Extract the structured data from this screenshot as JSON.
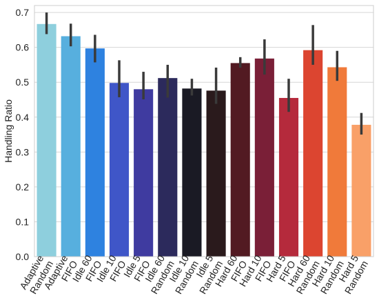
{
  "chart_data": {
    "type": "bar",
    "ylabel": "Handling Ratio",
    "xlabel": "",
    "ylim": [
      0,
      0.72
    ],
    "yticks": [
      "0.0",
      "0.1",
      "0.2",
      "0.3",
      "0.4",
      "0.5",
      "0.6",
      "0.7"
    ],
    "grid": "horizontal",
    "categories": [
      [
        "Adaptive",
        "Random"
      ],
      [
        "Adaptive",
        "FIFO"
      ],
      [
        "Idle 60",
        "FIFO"
      ],
      [
        "Idle 10",
        "FIFO"
      ],
      [
        "Idle 5",
        "FIFO"
      ],
      [
        "Idle 60",
        "Random"
      ],
      [
        "Idle 10",
        "Random"
      ],
      [
        "Idle 5",
        "Random"
      ],
      [
        "Hard 60",
        "FIFO"
      ],
      [
        "Hard 10",
        "FIFO"
      ],
      [
        "Hard 5",
        "FIFO"
      ],
      [
        "Hard 60",
        "Random"
      ],
      [
        "Hard 10",
        "Random"
      ],
      [
        "Hard 5",
        "Random"
      ]
    ],
    "values": [
      0.667,
      0.632,
      0.597,
      0.498,
      0.48,
      0.512,
      0.482,
      0.476,
      0.555,
      0.568,
      0.455,
      0.592,
      0.543,
      0.378
    ],
    "error_low": [
      0.638,
      0.603,
      0.557,
      0.457,
      0.451,
      0.456,
      0.462,
      0.438,
      0.542,
      0.522,
      0.415,
      0.55,
      0.504,
      0.35
    ],
    "error_high": [
      0.7,
      0.668,
      0.636,
      0.563,
      0.53,
      0.55,
      0.51,
      0.542,
      0.572,
      0.623,
      0.51,
      0.664,
      0.59,
      0.412
    ],
    "colors": [
      "#8ecfdd",
      "#57afde",
      "#2e82e0",
      "#3f56c8",
      "#3f3ba0",
      "#2c2a5c",
      "#1a1a24",
      "#2a1a1c",
      "#521a22",
      "#7a1f37",
      "#b52a3c",
      "#dc4530",
      "#f07a3a",
      "#f9a068"
    ],
    "error_color": "#3a3a3a"
  }
}
